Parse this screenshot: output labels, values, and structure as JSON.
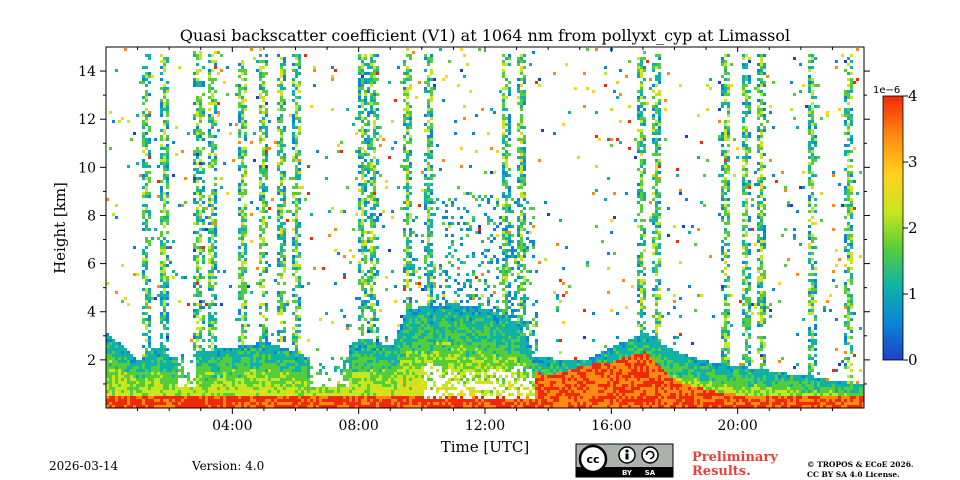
{
  "chart_data": {
    "type": "heatmap",
    "title": "Quasi backscatter coefficient (V1) at 1064 nm from pollyxt_cyp at Limassol",
    "xlabel": "Time [UTC]",
    "ylabel": "Height [km]",
    "xlim_hours": [
      0,
      24
    ],
    "ylim_km": [
      0,
      15
    ],
    "x_ticks": [
      {
        "hour": 4,
        "label": "04:00"
      },
      {
        "hour": 8,
        "label": "08:00"
      },
      {
        "hour": 12,
        "label": "12:00"
      },
      {
        "hour": 16,
        "label": "16:00"
      },
      {
        "hour": 20,
        "label": "20:00"
      }
    ],
    "y_ticks": [
      {
        "km": 2,
        "label": "2"
      },
      {
        "km": 4,
        "label": "4"
      },
      {
        "km": 6,
        "label": "6"
      },
      {
        "km": 8,
        "label": "8"
      },
      {
        "km": 10,
        "label": "10"
      },
      {
        "km": 12,
        "label": "12"
      },
      {
        "km": 14,
        "label": "14"
      }
    ],
    "colorbar": {
      "min": 0,
      "max": 4,
      "exponent_label": "1e−6",
      "ticks": [
        {
          "value": 0,
          "label": "0"
        },
        {
          "value": 1,
          "label": "1"
        },
        {
          "value": 2,
          "label": "2"
        },
        {
          "value": 3,
          "label": "3"
        },
        {
          "value": 4,
          "label": "4"
        }
      ],
      "colors": [
        "#1e3fc8",
        "#0b86d4",
        "#10b2a8",
        "#55cc3a",
        "#c8e61e",
        "#ffd21e",
        "#ff8a10",
        "#ef2a08"
      ]
    },
    "layers": {
      "boundary_layer_top_km": [
        [
          0,
          3.2
        ],
        [
          1,
          2.0
        ],
        [
          1.5,
          2.6
        ],
        [
          2,
          2.2
        ],
        [
          3,
          2.4
        ],
        [
          4,
          2.6
        ],
        [
          5,
          2.8
        ],
        [
          6,
          2.4
        ],
        [
          7,
          1.8
        ],
        [
          8,
          3.0
        ],
        [
          9,
          2.6
        ],
        [
          9.5,
          4.2
        ],
        [
          11,
          4.4
        ],
        [
          12,
          4.2
        ],
        [
          13,
          3.6
        ],
        [
          13.5,
          2.2
        ],
        [
          15,
          2.0
        ],
        [
          16,
          2.6
        ],
        [
          17,
          3.2
        ],
        [
          18,
          2.4
        ],
        [
          19,
          2.0
        ],
        [
          20,
          1.8
        ],
        [
          21,
          1.6
        ],
        [
          22,
          1.4
        ],
        [
          23,
          1.2
        ],
        [
          24,
          1.0
        ]
      ],
      "dense_aerosol_km": [
        [
          10,
          2.0
        ],
        [
          11,
          1.6
        ],
        [
          12,
          1.6
        ],
        [
          13,
          1.8
        ],
        [
          14,
          1.4
        ],
        [
          15,
          1.8
        ],
        [
          16,
          2.0
        ],
        [
          17,
          2.4
        ],
        [
          18,
          1.2
        ],
        [
          19,
          0.8
        ],
        [
          20,
          0.6
        ],
        [
          21,
          0.6
        ],
        [
          22,
          0.5
        ],
        [
          23,
          0.5
        ],
        [
          24,
          0.5
        ]
      ]
    },
    "cloud_columns_hours": [
      1.2,
      1.8,
      2.9,
      3.3,
      4.3,
      4.9,
      5.5,
      6.0,
      8.1,
      8.4,
      9.5,
      10.2,
      12.6,
      13.1,
      16.9,
      17.4,
      19.6,
      20.2,
      20.7,
      22.3,
      23.5
    ]
  },
  "footer": {
    "date": "2026-03-14",
    "version": "Version: 4.0",
    "preliminary_line1": "Preliminary",
    "preliminary_line2": "Results.",
    "copyright_line1": "© TROPOS & ECoE 2026.",
    "copyright_line2": "CC BY SA 4.0 License.",
    "badge": {
      "cc": "cc",
      "by": "BY",
      "sa": "SA"
    }
  }
}
